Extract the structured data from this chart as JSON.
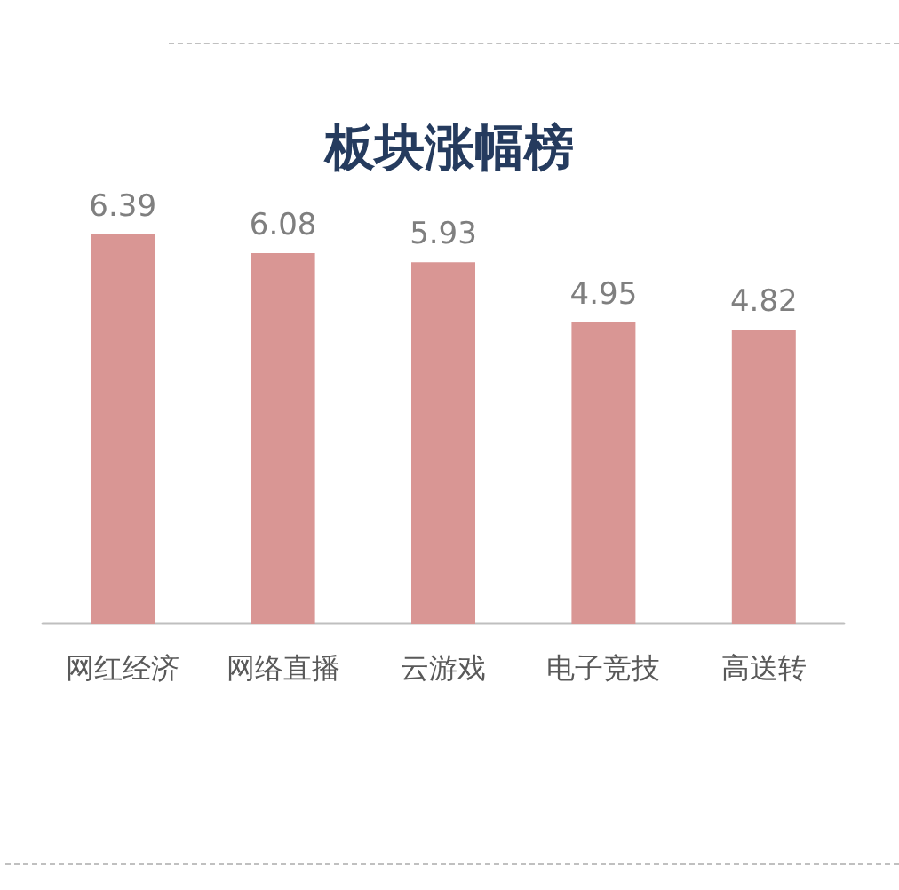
{
  "chart_data": {
    "type": "bar",
    "title": "板块涨幅榜",
    "categories": [
      "网红经济",
      "网络直播",
      "云游戏",
      "电子竞技",
      "高送转"
    ],
    "values": [
      6.39,
      6.08,
      5.93,
      4.95,
      4.82
    ],
    "color": "#d99694",
    "data_labels": true
  }
}
